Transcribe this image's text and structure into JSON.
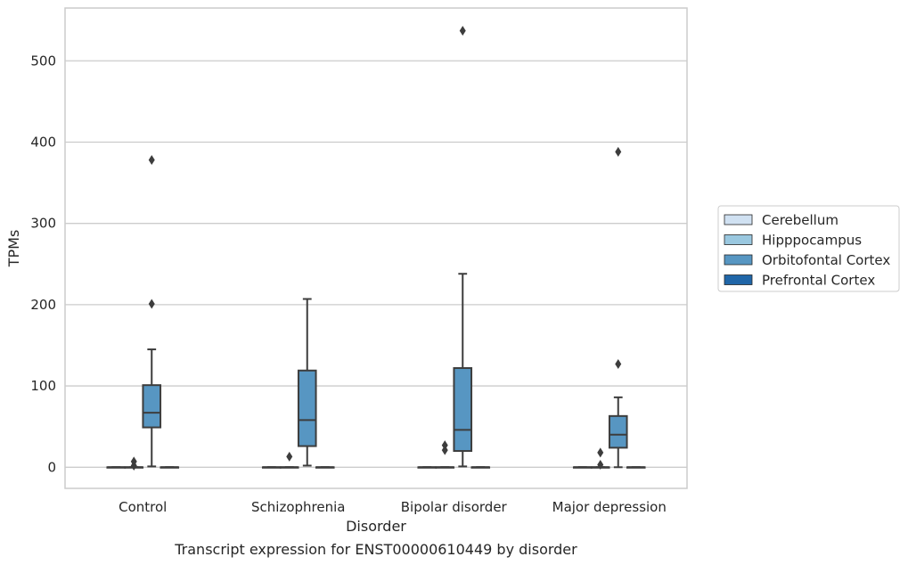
{
  "chart_data": {
    "type": "box",
    "caption": "Transcript expression for ENST00000610449 by disorder",
    "xlabel": "Disorder",
    "ylabel": "TPMs",
    "ylim": [
      -26,
      565
    ],
    "yticks": [
      0,
      100,
      200,
      300,
      400,
      500
    ],
    "grid": true,
    "legend_placement": "center-right",
    "categories": [
      "Control",
      "Schizophrenia",
      "Bipolar disorder",
      "Major depression"
    ],
    "series": [
      {
        "name": "Cerebellum",
        "color": "#d0e1f2",
        "boxes": [
          {
            "q1": 0,
            "median": 0,
            "q3": 0,
            "whislo": 0,
            "whishi": 0,
            "fliers": []
          },
          {
            "q1": 0,
            "median": 0,
            "q3": 0,
            "whislo": 0,
            "whishi": 0,
            "fliers": []
          },
          {
            "q1": 0,
            "median": 0,
            "q3": 0,
            "whislo": 0,
            "whishi": 0,
            "fliers": []
          },
          {
            "q1": 0,
            "median": 0,
            "q3": 0,
            "whislo": 0,
            "whishi": 0,
            "fliers": []
          }
        ]
      },
      {
        "name": "Hipppocampus",
        "color": "#9ac8e0",
        "boxes": [
          {
            "q1": 0,
            "median": 0,
            "q3": 0,
            "whislo": 0,
            "whishi": 0,
            "fliers": [
              2,
              7
            ]
          },
          {
            "q1": 0,
            "median": 0,
            "q3": 0,
            "whislo": 0,
            "whishi": 0,
            "fliers": [
              13
            ]
          },
          {
            "q1": 0,
            "median": 0,
            "q3": 0,
            "whislo": 0,
            "whishi": 0,
            "fliers": [
              21,
              27
            ]
          },
          {
            "q1": 0,
            "median": 0,
            "q3": 0,
            "whislo": 0,
            "whishi": 0,
            "fliers": [
              3,
              18
            ]
          }
        ]
      },
      {
        "name": "Orbitofontal Cortex",
        "color": "#5796c2",
        "boxes": [
          {
            "q1": 49,
            "median": 67,
            "q3": 101,
            "whislo": 1,
            "whishi": 145,
            "fliers": [
              201,
              378
            ]
          },
          {
            "q1": 26,
            "median": 58,
            "q3": 119,
            "whislo": 2,
            "whishi": 207,
            "fliers": []
          },
          {
            "q1": 20,
            "median": 46,
            "q3": 122,
            "whislo": 1,
            "whishi": 238,
            "fliers": [
              537
            ]
          },
          {
            "q1": 24,
            "median": 40,
            "q3": 63,
            "whislo": 0,
            "whishi": 86,
            "fliers": [
              127,
              388
            ]
          }
        ]
      },
      {
        "name": "Prefrontal Cortex",
        "color": "#2066a8",
        "boxes": [
          {
            "q1": 0,
            "median": 0,
            "q3": 0,
            "whislo": 0,
            "whishi": 0,
            "fliers": []
          },
          {
            "q1": 0,
            "median": 0,
            "q3": 0,
            "whislo": 0,
            "whishi": 0,
            "fliers": []
          },
          {
            "q1": 0,
            "median": 0,
            "q3": 0,
            "whislo": 0,
            "whishi": 0,
            "fliers": []
          },
          {
            "q1": 0,
            "median": 0,
            "q3": 0,
            "whislo": 0,
            "whishi": 0,
            "fliers": []
          }
        ]
      }
    ]
  }
}
